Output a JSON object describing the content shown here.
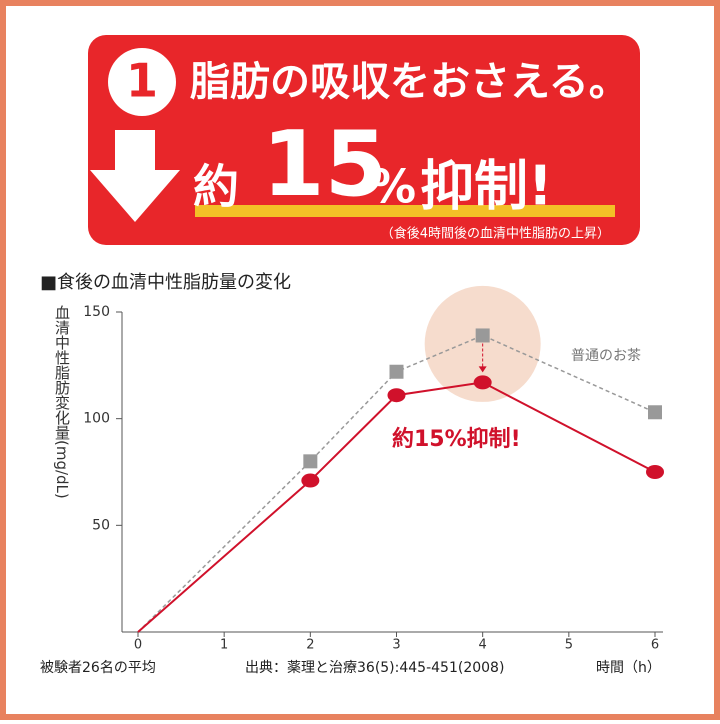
{
  "header": {
    "number": "1",
    "headline": "脂肪の吸収をおさえる。",
    "claim_prefix": "約",
    "claim_number": "15",
    "claim_unit": "%",
    "claim_suffix": "抑制!",
    "note": "（食後4時間後の血清中性脂肪の上昇）"
  },
  "chart_data": {
    "type": "line",
    "title": "■食後の血清中性脂肪量の変化",
    "y_label": "血清中性脂肪変化量(mg/dL)",
    "x_label": "時間（h）",
    "x": [
      0,
      2,
      3,
      4,
      6
    ],
    "series": [
      {
        "name": "普通のお茶",
        "color": "#999999",
        "values": [
          0,
          80,
          122,
          139,
          103
        ]
      },
      {
        "color": "#d0112b",
        "values": [
          0,
          71,
          111,
          117,
          75
        ]
      }
    ],
    "xlim": [
      0,
      6
    ],
    "xticks": [
      0,
      1,
      2,
      3,
      4,
      5,
      6
    ],
    "ylim": [
      0,
      150
    ],
    "yticks": [
      50,
      100,
      150
    ],
    "annotation": "約15%抑制!",
    "footnote_left": "被験者26名の平均",
    "footnote_source": "出典：薬理と治療36(5):445-451(2008)"
  }
}
